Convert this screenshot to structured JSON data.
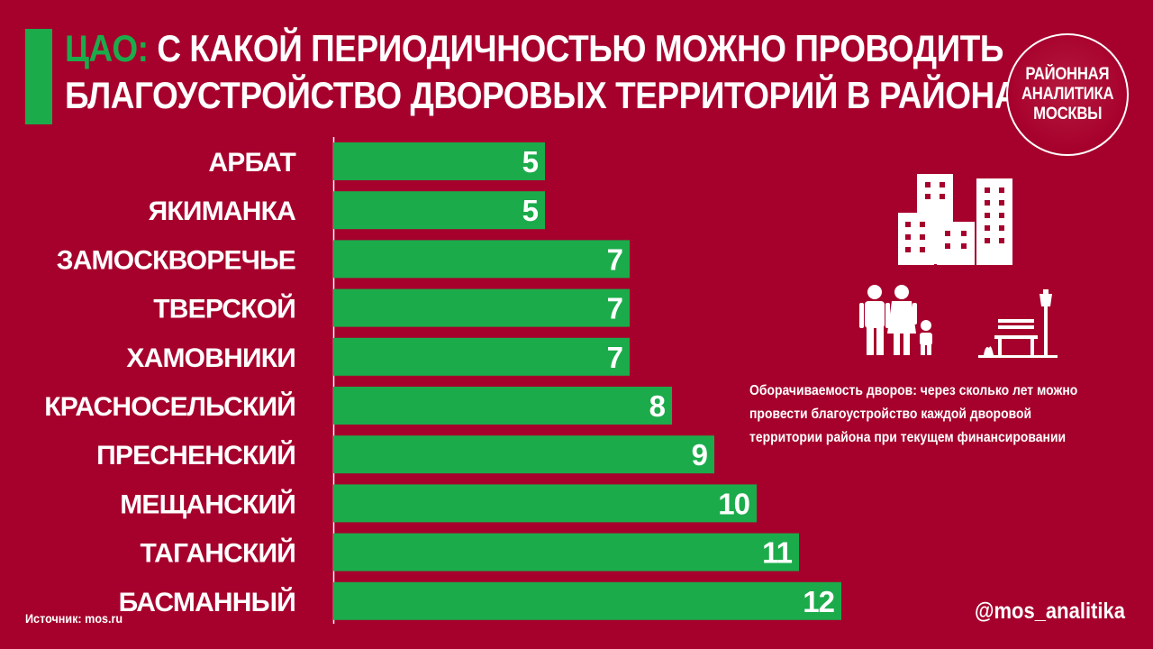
{
  "header": {
    "title_highlight": "ЦАО:",
    "title_rest": " С КАКОЙ ПЕРИОДИЧНОСТЬЮ МОЖНО ПРОВОДИТЬ",
    "title_line2": "БЛАГОУСТРОЙСТВО ДВОРОВЫХ ТЕРРИТОРИЙ В РАЙОНАХ"
  },
  "logo": {
    "line1": "РАЙОННАЯ",
    "line2": "АНАЛИТИКА",
    "line3": "МОСКВЫ"
  },
  "note": "Оборачиваемость дворов: через сколько лет можно провести благоустройство каждой дворовой территории района при текущем финансировании",
  "source": "Источник: mos.ru",
  "handle": "@mos_analitika",
  "colors": {
    "background": "#a6002c",
    "bar": "#1cab4b",
    "text": "#ffffff"
  },
  "icons": [
    "buildings-icon",
    "family-icon",
    "park-bench-icon"
  ],
  "chart_data": {
    "type": "bar",
    "orientation": "horizontal",
    "categories": [
      "АРБАТ",
      "ЯКИМАНКА",
      "ЗАМОСКВОРЕЧЬЕ",
      "ТВЕРСКОЙ",
      "ХАМОВНИКИ",
      "КРАСНОСЕЛЬСКИЙ",
      "ПРЕСНЕНСКИЙ",
      "МЕЩАНСКИЙ",
      "ТАГАНСКИЙ",
      "БАСМАННЫЙ"
    ],
    "values": [
      5,
      5,
      7,
      7,
      7,
      8,
      9,
      10,
      11,
      12
    ],
    "data_labels": [
      "5",
      "5",
      "7",
      "7",
      "7",
      "8",
      "9",
      "10",
      "11",
      "12"
    ],
    "xlim": [
      0,
      12
    ],
    "grid": false,
    "legend": "none"
  }
}
